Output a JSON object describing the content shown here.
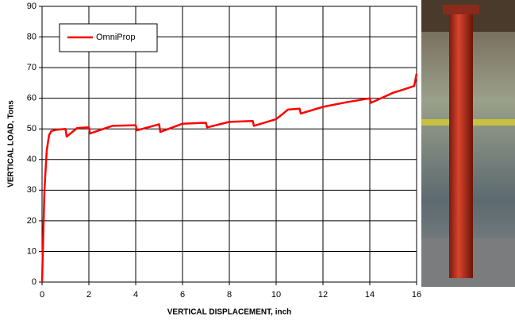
{
  "chart_data": {
    "type": "line",
    "xlabel": "VERTICAL DISPLACEMENT, inch",
    "ylabel": "VERTICAL LOAD, Tons",
    "x": [
      0,
      0.05,
      0.1,
      0.2,
      0.3,
      0.4,
      0.6,
      1.0,
      1.05,
      1.5,
      2.0,
      2.05,
      3.0,
      4.0,
      4.05,
      5.0,
      5.05,
      6.0,
      7.0,
      7.05,
      8.0,
      9.0,
      9.05,
      10.0,
      10.3,
      10.5,
      11.0,
      11.05,
      12.0,
      13.0,
      14.0,
      14.05,
      15.0,
      15.5,
      15.9,
      16.0
    ],
    "series": [
      {
        "name": "OmniProp",
        "color": "#ff0000",
        "values": [
          0,
          15,
          30,
          43,
          48,
          49.3,
          49.7,
          50,
          47.5,
          50.3,
          50.5,
          48.5,
          51,
          51.2,
          49.5,
          51.5,
          49,
          51.7,
          52,
          50.5,
          52.3,
          52.6,
          51,
          53.2,
          55,
          56.3,
          56.6,
          55,
          57.2,
          58.7,
          60,
          58.5,
          61.8,
          63,
          64,
          68
        ]
      }
    ],
    "xlim": [
      0,
      16
    ],
    "xticks": [
      0,
      2,
      4,
      6,
      8,
      10,
      12,
      14,
      16
    ],
    "ylim": [
      0,
      90
    ],
    "yticks": [
      0,
      10,
      20,
      30,
      40,
      50,
      60,
      70,
      80,
      90
    ],
    "grid": true,
    "legend": "upper left"
  }
}
